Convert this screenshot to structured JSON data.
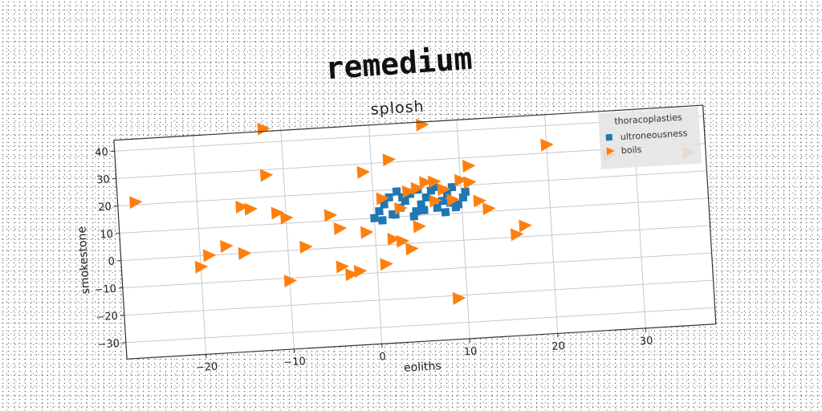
{
  "page_title": "remedium",
  "chart_data": {
    "type": "scatter",
    "title": "splosh",
    "xlabel": "eoliths",
    "ylabel": "smokestone",
    "xlim": [
      -29,
      38
    ],
    "ylim": [
      -36,
      44
    ],
    "grid": true,
    "legend": {
      "title": "thoracoplasties",
      "placement": "top-right"
    },
    "x_ticks": [
      -20,
      -10,
      0,
      10,
      20,
      30
    ],
    "y_ticks": [
      -30,
      -20,
      -10,
      0,
      10,
      20,
      30,
      40
    ],
    "x_tick_labels": [
      "−20",
      "−10",
      "0",
      "10",
      "20",
      "30"
    ],
    "y_tick_labels": [
      "−30",
      "−20",
      "−10",
      "0",
      "10",
      "20",
      "30",
      "40"
    ],
    "series": [
      {
        "name": "ultroneousness",
        "marker": "square",
        "color": "#1f77b4",
        "points": [
          [
            0.0,
            10.0
          ],
          [
            0.6,
            12.4
          ],
          [
            1.2,
            14.8
          ],
          [
            1.8,
            17.2
          ],
          [
            2.4,
            10.8
          ],
          [
            3.0,
            13.2
          ],
          [
            3.6,
            15.6
          ],
          [
            4.2,
            18.0
          ],
          [
            4.8,
            11.6
          ],
          [
            5.4,
            14.0
          ],
          [
            6.0,
            16.4
          ],
          [
            6.6,
            18.8
          ],
          [
            7.2,
            12.4
          ],
          [
            7.8,
            14.8
          ],
          [
            8.4,
            17.2
          ],
          [
            9.0,
            19.6
          ],
          [
            9.6,
            13.2
          ],
          [
            10.2,
            15.6
          ],
          [
            0.9,
            9.0
          ],
          [
            2.1,
            11.0
          ],
          [
            3.3,
            17.0
          ],
          [
            4.5,
            9.8
          ],
          [
            5.7,
            11.8
          ],
          [
            6.9,
            20.0
          ],
          [
            8.1,
            10.6
          ],
          [
            9.3,
            12.2
          ],
          [
            10.5,
            17.6
          ],
          [
            2.7,
            19.2
          ],
          [
            5.1,
            19.4
          ],
          [
            8.7,
            14.0
          ]
        ]
      },
      {
        "name": "boils",
        "marker": "triangle-right",
        "color": "#ff7f0e",
        "points": [
          [
            -27,
            21
          ],
          [
            -20,
            -4
          ],
          [
            -19,
            0
          ],
          [
            -17,
            3
          ],
          [
            -15,
            17
          ],
          [
            -15,
            0
          ],
          [
            -14,
            16
          ],
          [
            -12,
            45
          ],
          [
            -12,
            28
          ],
          [
            -11,
            14
          ],
          [
            -10,
            12
          ],
          [
            -10,
            -11
          ],
          [
            -8,
            1
          ],
          [
            -5,
            12
          ],
          [
            -4,
            7
          ],
          [
            -4,
            -7
          ],
          [
            -3,
            -10
          ],
          [
            -2,
            -9
          ],
          [
            -1,
            5
          ],
          [
            -1,
            27
          ],
          [
            1,
            -7
          ],
          [
            1,
            17
          ],
          [
            2,
            31
          ],
          [
            2,
            2
          ],
          [
            3,
            13
          ],
          [
            3,
            1
          ],
          [
            4,
            -2
          ],
          [
            4,
            19
          ],
          [
            5,
            6
          ],
          [
            5,
            20
          ],
          [
            6,
            22
          ],
          [
            6,
            43
          ],
          [
            7,
            15
          ],
          [
            7,
            22
          ],
          [
            8,
            19
          ],
          [
            9,
            -21
          ],
          [
            9,
            15
          ],
          [
            10,
            22
          ],
          [
            11,
            21
          ],
          [
            11,
            27
          ],
          [
            12,
            14
          ],
          [
            13,
            11
          ],
          [
            16,
            1
          ],
          [
            17,
            4
          ],
          [
            20,
            33
          ],
          [
            27,
            28
          ],
          [
            36,
            27
          ]
        ]
      }
    ]
  }
}
